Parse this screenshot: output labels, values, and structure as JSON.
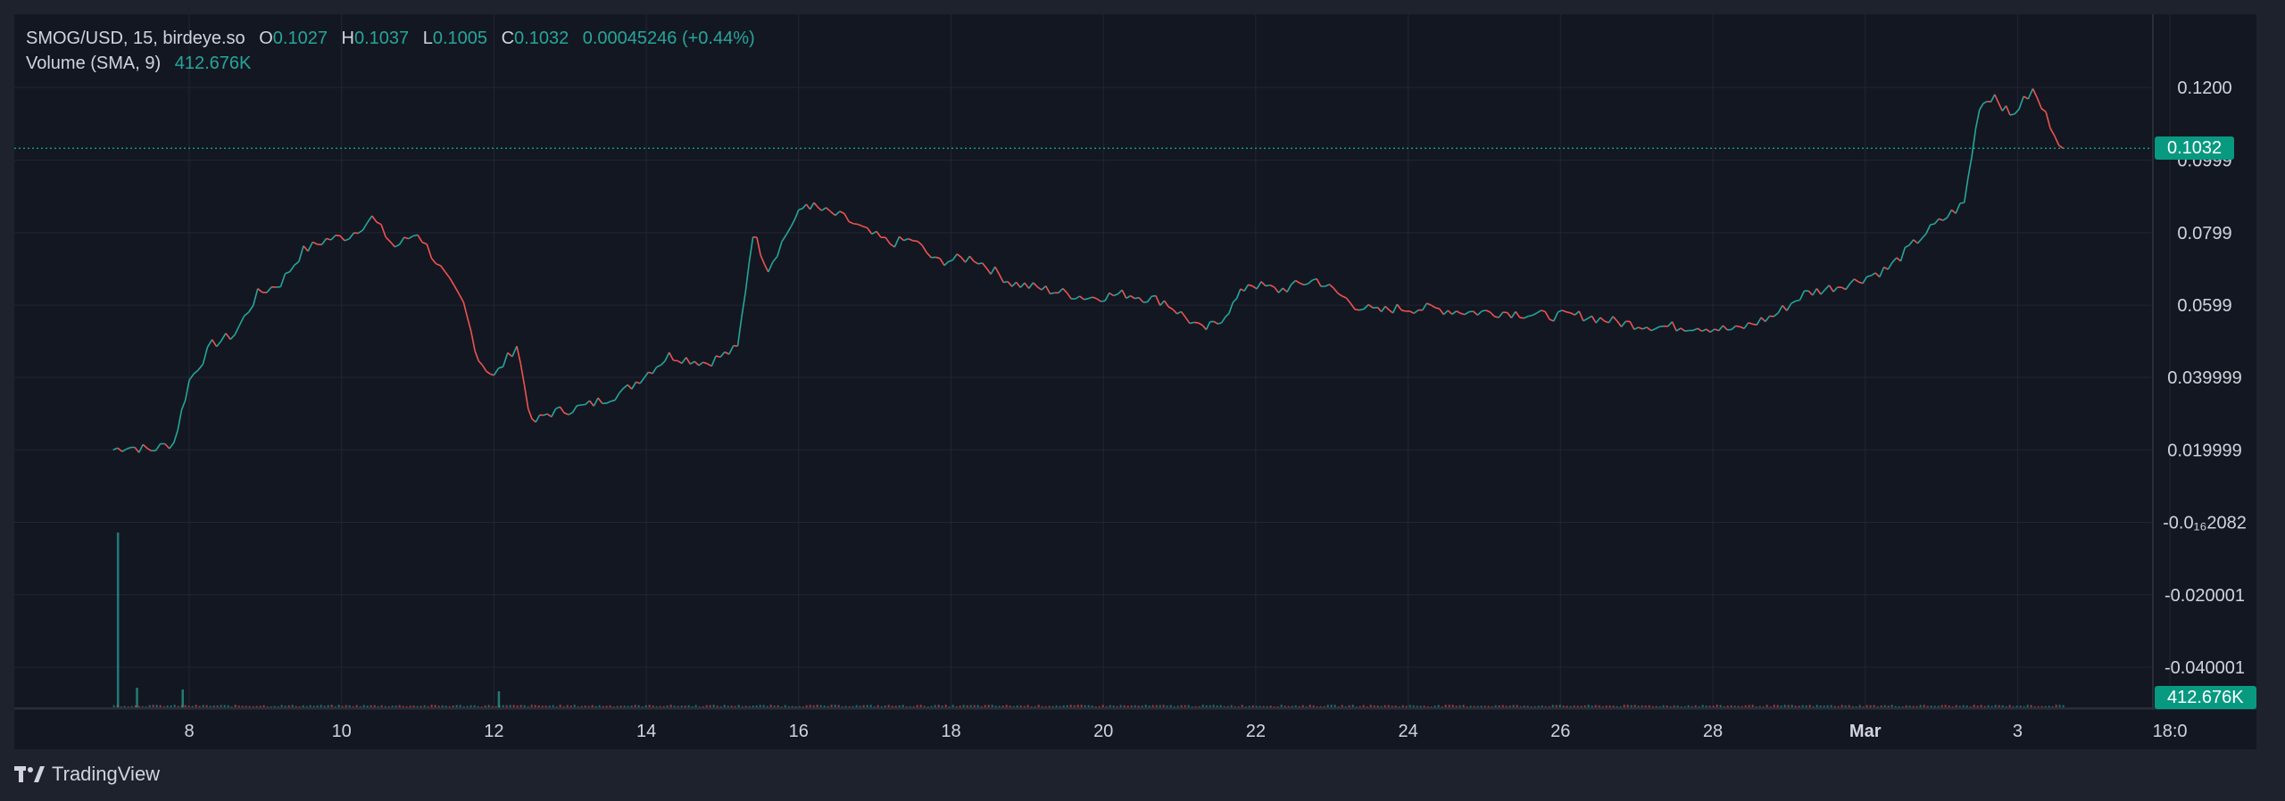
{
  "legend": {
    "symbol": "SMOG/USD, 15, birdeye.so",
    "open_key": "O",
    "open": "0.1027",
    "high_key": "H",
    "high": "0.1037",
    "low_key": "L",
    "low": "0.1005",
    "close_key": "C",
    "close": "0.1032",
    "change": "0.00045246 (+0.44%)",
    "volume_label": "Volume (SMA, 9)",
    "volume_value": "412.676K"
  },
  "footer": {
    "brand": "TradingView"
  },
  "colors": {
    "up": "#26a69a",
    "down": "#ef5350",
    "tag": "#089981"
  },
  "chart_data": {
    "type": "line",
    "x_tick_labels": [
      "8",
      "10",
      "12",
      "14",
      "16",
      "18",
      "20",
      "22",
      "24",
      "26",
      "28",
      "Mar",
      "3",
      "18:0"
    ],
    "y_tick_labels": [
      "0.1200",
      "0.0999",
      "0.0799",
      "0.0599",
      "0.039999",
      "0.019999",
      "-0.0₁₆2082",
      "-0.020001",
      "-0.040001"
    ],
    "y_tick_values": [
      0.12,
      0.0999,
      0.0799,
      0.0599,
      0.04,
      0.02,
      0.0,
      -0.02,
      -0.04
    ],
    "ylim": [
      -0.052,
      0.141
    ],
    "last_price_label": "0.1032",
    "last_price": 0.1032,
    "volume_label_tag": "412.676K",
    "grid": true,
    "series": [
      {
        "x": [
          "Feb 7 18:00",
          "Feb 7 22:00",
          "Feb 8 06:00",
          "Feb 8 12:00",
          "Feb 8 18:00",
          "Feb 9 00:00",
          "Feb 9 06:00",
          "Feb 9 12:00",
          "Feb 9 18:00",
          "Feb 10 00:00",
          "Feb 10 06:00",
          "Feb 10 12:00",
          "Feb 10 18:00",
          "Feb 11 00:00",
          "Feb 11 06:00",
          "Feb 11 12:00",
          "Feb 11 18:00",
          "Feb 12 00:00",
          "Feb 12 06:00",
          "Feb 12 12:00",
          "Feb 12 18:00",
          "Feb 13 00:00",
          "Feb 13 12:00",
          "Feb 14 00:00",
          "Feb 14 12:00",
          "Feb 15 00:00",
          "Feb 15 12:00",
          "Feb 15 18:00",
          "Feb 16 00:00",
          "Feb 16 06:00",
          "Feb 16 12:00",
          "Feb 16 18:00",
          "Feb 17 00:00",
          "Feb 17 06:00",
          "Feb 17 12:00",
          "Feb 17 18:00",
          "Feb 18 00:00",
          "Feb 18 12:00",
          "Feb 19 00:00",
          "Feb 19 12:00",
          "Feb 20 00:00",
          "Feb 20 12:00",
          "Feb 21 00:00",
          "Feb 21 12:00",
          "Feb 21 18:00",
          "Feb 22 00:00",
          "Feb 22 06:00",
          "Feb 22 12:00",
          "Feb 23 00:00",
          "Feb 23 12:00",
          "Feb 23 18:00",
          "Feb 24 00:00",
          "Feb 24 12:00",
          "Feb 25 00:00",
          "Feb 25 12:00",
          "Feb 26 00:00",
          "Feb 26 12:00",
          "Feb 27 00:00",
          "Feb 27 12:00",
          "Feb 28 00:00",
          "Feb 28 12:00",
          "Feb 29 00:00",
          "Feb 29 12:00",
          "Mar 1 00:00",
          "Mar 1 12:00",
          "Mar 2 00:00",
          "Mar 2 12:00",
          "Mar 2 18:00",
          "Mar 3 00:00",
          "Mar 3 06:00",
          "Mar 3 12:00",
          "Mar 3 18:00"
        ],
        "t": [
          0,
          0.18,
          0.5,
          0.8,
          1.0,
          1.3,
          1.6,
          1.9,
          2.2,
          2.5,
          2.8,
          3.1,
          3.4,
          3.7,
          4.0,
          4.3,
          4.6,
          4.8,
          5.0,
          5.3,
          5.5,
          5.7,
          6.2,
          6.7,
          7.3,
          7.8,
          8.2,
          8.4,
          8.6,
          8.9,
          9.1,
          9.3,
          9.6,
          9.9,
          10.2,
          10.5,
          10.8,
          11.3,
          11.8,
          12.3,
          12.8,
          13.3,
          13.8,
          14.3,
          14.5,
          14.7,
          14.9,
          15.3,
          15.8,
          16.3,
          16.6,
          16.8,
          17.3,
          17.8,
          18.3,
          18.8,
          19.3,
          19.8,
          20.3,
          20.8,
          21.3,
          21.8,
          22.2,
          22.8,
          23.3,
          23.8,
          24.3,
          24.5,
          24.7,
          24.9,
          25.2,
          25.6
        ],
        "values": [
          0.02,
          0.021,
          0.02,
          0.022,
          0.039,
          0.049,
          0.052,
          0.063,
          0.066,
          0.075,
          0.078,
          0.079,
          0.084,
          0.076,
          0.08,
          0.07,
          0.06,
          0.045,
          0.04,
          0.049,
          0.027,
          0.03,
          0.032,
          0.036,
          0.046,
          0.044,
          0.048,
          0.08,
          0.07,
          0.082,
          0.088,
          0.086,
          0.084,
          0.08,
          0.077,
          0.078,
          0.072,
          0.073,
          0.066,
          0.064,
          0.062,
          0.063,
          0.061,
          0.053,
          0.055,
          0.06,
          0.066,
          0.064,
          0.067,
          0.06,
          0.058,
          0.059,
          0.059,
          0.058,
          0.058,
          0.057,
          0.057,
          0.055,
          0.054,
          0.054,
          0.053,
          0.057,
          0.063,
          0.066,
          0.07,
          0.08,
          0.088,
          0.115,
          0.118,
          0.112,
          0.119,
          0.1032
        ]
      }
    ]
  }
}
